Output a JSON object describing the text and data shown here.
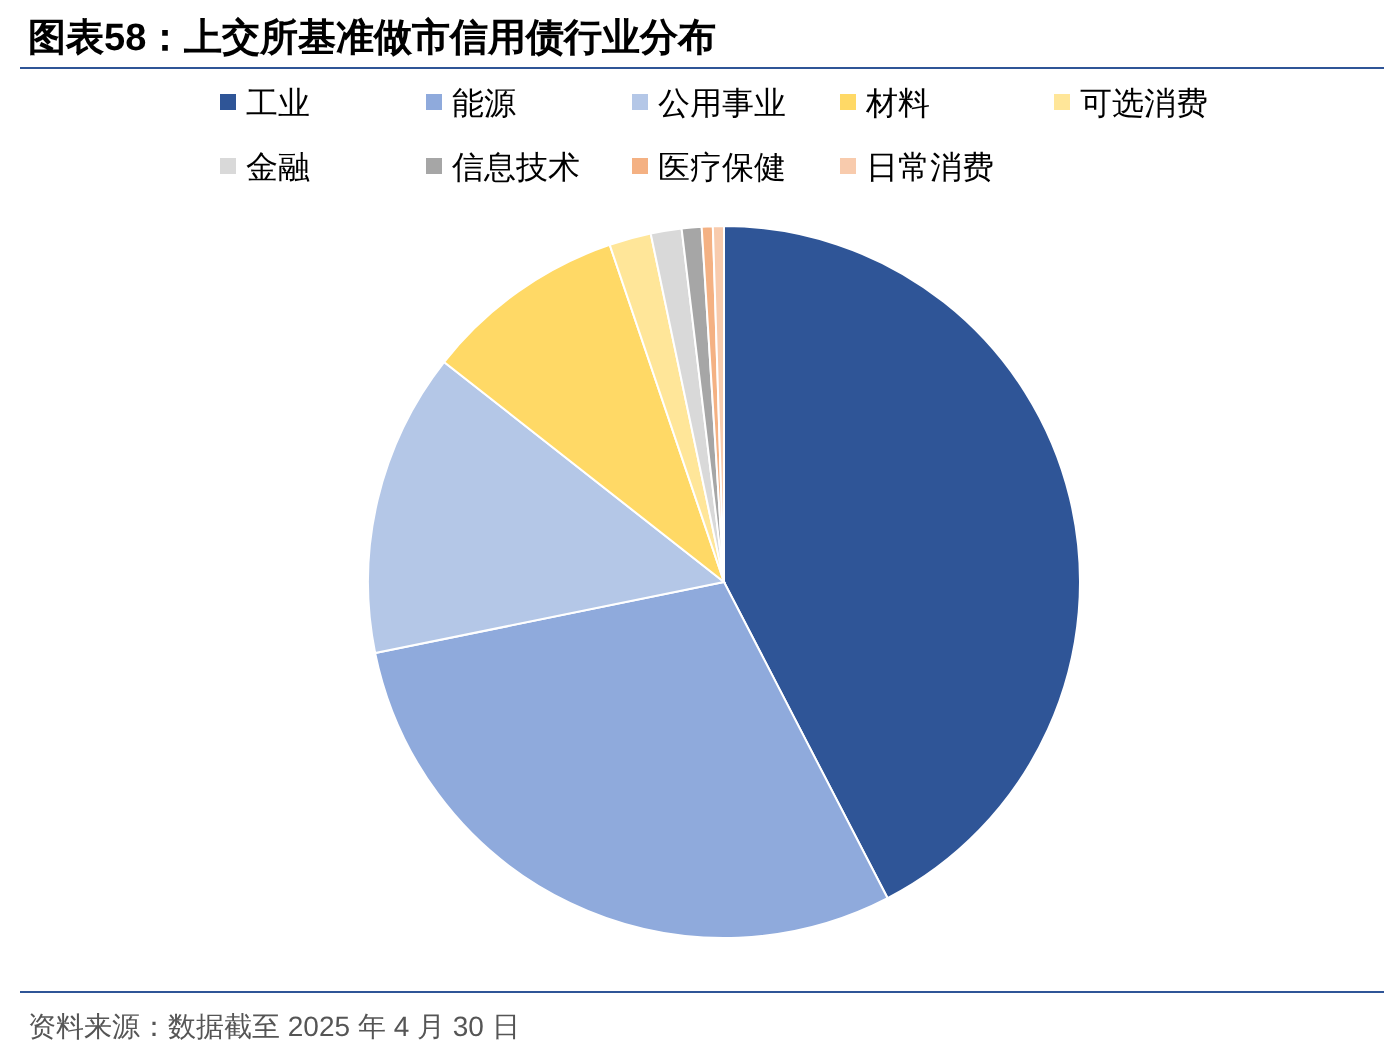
{
  "chart_data": {
    "type": "pie",
    "title": "图表58：上交所基准做市信用债行业分布",
    "categories": [
      "工业",
      "能源",
      "公用事业",
      "材料",
      "可选消费",
      "金融",
      "信息技术",
      "医疗保健",
      "日常消费"
    ],
    "values": [
      42.4,
      29.4,
      13.8,
      9.2,
      1.9,
      1.4,
      0.9,
      0.5,
      0.5
    ],
    "colors": [
      "#2f5597",
      "#8faadc",
      "#b4c7e7",
      "#ffd966",
      "#ffe699",
      "#d9d9d9",
      "#a6a6a6",
      "#f4b183",
      "#f8cbad"
    ],
    "legend": "top",
    "annotations": [
      "资料来源：数据截至 2025 年 4 月 30 日"
    ]
  }
}
